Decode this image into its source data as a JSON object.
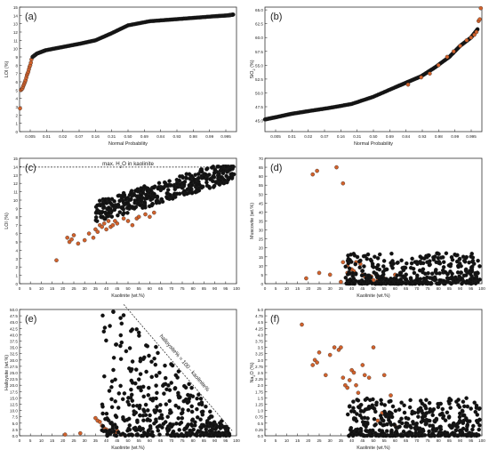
{
  "colors": {
    "black_points": "#111111",
    "orange_points": "#d2622c",
    "axes": "#333333"
  },
  "chart_data": [
    {
      "panel": "(a)",
      "type": "scatter",
      "xlabel": "Normal  Probability",
      "ylabel": "LOI (%)",
      "x_tick_labels": [
        "0.005",
        "0.01",
        "0.02",
        "0.07",
        "0.16",
        "0.31",
        "0.50",
        "0.69",
        "0.84",
        "0.93",
        "0.98",
        "0.99",
        "0.995"
      ],
      "ylim": [
        0,
        15
      ],
      "yticks": [
        0,
        1,
        2,
        3,
        4,
        5,
        6,
        7,
        8,
        9,
        10,
        11,
        12,
        13,
        14,
        15
      ],
      "series": [
        {
          "color": "orange",
          "x": [
            0.002,
            0.006,
            0.01,
            0.013,
            0.016,
            0.019,
            0.022,
            0.025,
            0.028,
            0.031,
            0.034,
            0.037,
            0.04,
            0.043,
            0.046,
            0.049,
            0.052,
            0.055
          ],
          "y": [
            2.8,
            5.0,
            5.1,
            5.2,
            5.4,
            5.6,
            5.8,
            6.0,
            6.2,
            6.5,
            6.8,
            7.0,
            7.2,
            7.5,
            7.8,
            8.0,
            8.3,
            8.7
          ]
        },
        {
          "color": "black",
          "line_points": [
            [
              0.06,
              9.0
            ],
            [
              0.08,
              9.4
            ],
            [
              0.12,
              9.8
            ],
            [
              0.2,
              10.2
            ],
            [
              0.28,
              10.6
            ],
            [
              0.35,
              11.0
            ],
            [
              0.42,
              11.8
            ],
            [
              0.5,
              12.8
            ],
            [
              0.6,
              13.3
            ],
            [
              0.7,
              13.5
            ],
            [
              0.8,
              13.7
            ],
            [
              0.9,
              13.9
            ],
            [
              0.96,
              14.0
            ],
            [
              0.985,
              14.1
            ]
          ]
        }
      ]
    },
    {
      "panel": "(b)",
      "type": "scatter",
      "xlabel": "Normal  Probability",
      "ylabel": "SiO2 (%)",
      "x_tick_labels": [
        "0.005",
        "0.01",
        "0.02",
        "0.07",
        "0.16",
        "0.31",
        "0.50",
        "0.69",
        "0.84",
        "0.93",
        "0.98",
        "0.99",
        "0.995"
      ],
      "ylim": [
        43.0,
        65.5
      ],
      "yticks": [
        45.0,
        47.5,
        50.0,
        52.5,
        55.0,
        57.5,
        60.0,
        62.5,
        65.0
      ],
      "series": [
        {
          "color": "black",
          "line_points": [
            [
              0.0,
              45.2
            ],
            [
              0.05,
              45.6
            ],
            [
              0.12,
              46.2
            ],
            [
              0.2,
              46.7
            ],
            [
              0.3,
              47.3
            ],
            [
              0.4,
              48.0
            ],
            [
              0.5,
              49.3
            ],
            [
              0.6,
              51.0
            ],
            [
              0.66,
              52.0
            ],
            [
              0.72,
              53.0
            ],
            [
              0.78,
              54.5
            ],
            [
              0.85,
              56.5
            ],
            [
              0.9,
              58.5
            ],
            [
              0.95,
              60.0
            ],
            [
              0.98,
              61.5
            ]
          ]
        },
        {
          "color": "orange",
          "x": [
            0.66,
            0.72,
            0.76,
            0.8,
            0.84,
            0.87,
            0.9,
            0.93,
            0.95,
            0.965,
            0.975,
            0.985,
            0.99,
            0.995
          ],
          "y": [
            51.5,
            52.8,
            53.5,
            55.0,
            56.5,
            57.5,
            58.5,
            59.5,
            60.0,
            60.5,
            61.0,
            63.0,
            63.3,
            65.3
          ]
        }
      ]
    },
    {
      "panel": "(c)",
      "type": "scatter",
      "xlabel": "Kaolinite (wt.%)",
      "ylabel": "LOI (%)",
      "annotation": "max. H2O in kaolinite",
      "reference_line_y": 13.95,
      "xlim": [
        0,
        100
      ],
      "ylim": [
        0,
        15
      ],
      "xticks": [
        0,
        5,
        10,
        15,
        20,
        25,
        30,
        35,
        40,
        45,
        50,
        55,
        60,
        65,
        70,
        75,
        80,
        85,
        90,
        95,
        100
      ],
      "yticks": [
        0,
        1,
        2,
        3,
        4,
        5,
        6,
        7,
        8,
        9,
        10,
        11,
        12,
        13,
        14,
        15
      ],
      "series": [
        {
          "color": "orange",
          "x": [
            17,
            22,
            23,
            24,
            25,
            27,
            30,
            32,
            34,
            35,
            36,
            37,
            38,
            39,
            40,
            41,
            42,
            43,
            44,
            45,
            48,
            50,
            52,
            54,
            55,
            58,
            60,
            62
          ],
          "y": [
            2.8,
            5.5,
            5.0,
            5.3,
            5.8,
            4.8,
            5.2,
            6.0,
            5.5,
            6.5,
            6.2,
            7.0,
            6.8,
            7.2,
            6.5,
            7.5,
            6.8,
            7.0,
            7.5,
            7.2,
            7.8,
            7.5,
            7.0,
            7.8,
            8.0,
            8.3,
            8.0,
            8.5
          ]
        },
        {
          "color": "black",
          "cloud": true,
          "x_range": [
            35,
            99
          ],
          "y_range": [
            8.3,
            14.0
          ]
        }
      ]
    },
    {
      "panel": "(d)",
      "type": "scatter",
      "xlabel": "Kaolinite (wt.%)",
      "ylabel": "Muscovite (wt.%)",
      "xlim": [
        0,
        100
      ],
      "ylim": [
        0,
        70
      ],
      "xticks": [
        0,
        5,
        10,
        15,
        20,
        25,
        30,
        35,
        40,
        45,
        50,
        55,
        60,
        65,
        70,
        75,
        80,
        85,
        90,
        95,
        100
      ],
      "yticks": [
        0,
        5,
        10,
        15,
        20,
        25,
        30,
        35,
        40,
        45,
        50,
        55,
        60,
        65,
        70
      ],
      "series": [
        {
          "color": "orange",
          "x": [
            22,
            24,
            33,
            36,
            19,
            25,
            30,
            36,
            38,
            40,
            42,
            44,
            46,
            48,
            50,
            52,
            35,
            38,
            41,
            45,
            49,
            55,
            58,
            60
          ],
          "y": [
            61,
            63,
            65,
            56,
            3,
            6,
            5,
            12,
            10,
            8,
            12,
            11,
            4,
            3,
            2,
            2,
            1,
            6,
            7,
            5,
            4,
            3,
            2,
            5
          ]
        },
        {
          "color": "black",
          "cloud": true,
          "x_range": [
            37,
            99
          ],
          "y_range": [
            0,
            17
          ]
        }
      ]
    },
    {
      "panel": "(e)",
      "type": "scatter",
      "xlabel": "Kaolinite (wt.%)",
      "ylabel": "Halloysite (wt.%)",
      "annotation": "halloysite% = 100 - kaolinite%",
      "reference_line": [
        [
          48,
          52
        ],
        [
          98,
          2
        ]
      ],
      "xlim": [
        0,
        100
      ],
      "ylim": [
        0,
        50
      ],
      "xticks": [
        0,
        5,
        10,
        15,
        20,
        25,
        30,
        35,
        40,
        45,
        50,
        55,
        60,
        65,
        70,
        75,
        80,
        85,
        90,
        95,
        100
      ],
      "yticks": [
        0,
        2.5,
        5,
        7.5,
        10,
        12.5,
        15,
        17.5,
        20,
        22.5,
        25,
        27.5,
        30,
        32.5,
        35,
        37.5,
        40,
        42.5,
        45,
        47.5,
        50
      ],
      "series": [
        {
          "color": "orange",
          "x": [
            21,
            28,
            35,
            36,
            37,
            38,
            39,
            40,
            42,
            44,
            45,
            47,
            52
          ],
          "y": [
            0.5,
            1.0,
            7.0,
            6.0,
            5.5,
            4.0,
            3.0,
            2.5,
            1.5,
            1.0,
            2.0,
            0.5,
            0.3
          ]
        },
        {
          "color": "black",
          "cloud": true,
          "x_range": [
            38,
            97
          ],
          "y_range": [
            0,
            49.5
          ]
        }
      ]
    },
    {
      "panel": "(f)",
      "type": "scatter",
      "xlabel": "Kaolinite (wt.%)",
      "ylabel": "Na2O (%)",
      "xlim": [
        0,
        100
      ],
      "ylim": [
        0,
        5
      ],
      "xticks": [
        0,
        5,
        10,
        15,
        20,
        25,
        30,
        35,
        40,
        45,
        50,
        55,
        60,
        65,
        70,
        75,
        80,
        85,
        90,
        95,
        100
      ],
      "yticks": [
        0,
        0.25,
        0.5,
        0.75,
        1.0,
        1.25,
        1.5,
        1.75,
        2.0,
        2.25,
        2.5,
        2.75,
        3.0,
        3.25,
        3.5,
        3.75,
        4.0,
        4.25,
        4.5,
        4.75,
        5.0
      ],
      "series": [
        {
          "color": "orange",
          "x": [
            17,
            22,
            23,
            24,
            25,
            28,
            30,
            32,
            34,
            35,
            36,
            37,
            38,
            39,
            40,
            41,
            42,
            43,
            44,
            45,
            46,
            48,
            50,
            52,
            54,
            55,
            58,
            60
          ],
          "y": [
            4.4,
            2.8,
            3.0,
            2.9,
            3.3,
            2.4,
            3.2,
            3.5,
            3.4,
            3.5,
            2.3,
            2.0,
            1.9,
            2.2,
            2.6,
            2.5,
            2.0,
            1.7,
            1.2,
            2.8,
            2.4,
            2.3,
            3.5,
            0.6,
            0.9,
            2.4,
            1.6,
            0.4
          ]
        },
        {
          "color": "black",
          "cloud": true,
          "x_range": [
            38,
            99
          ],
          "y_range": [
            0,
            1.5
          ]
        }
      ]
    }
  ]
}
